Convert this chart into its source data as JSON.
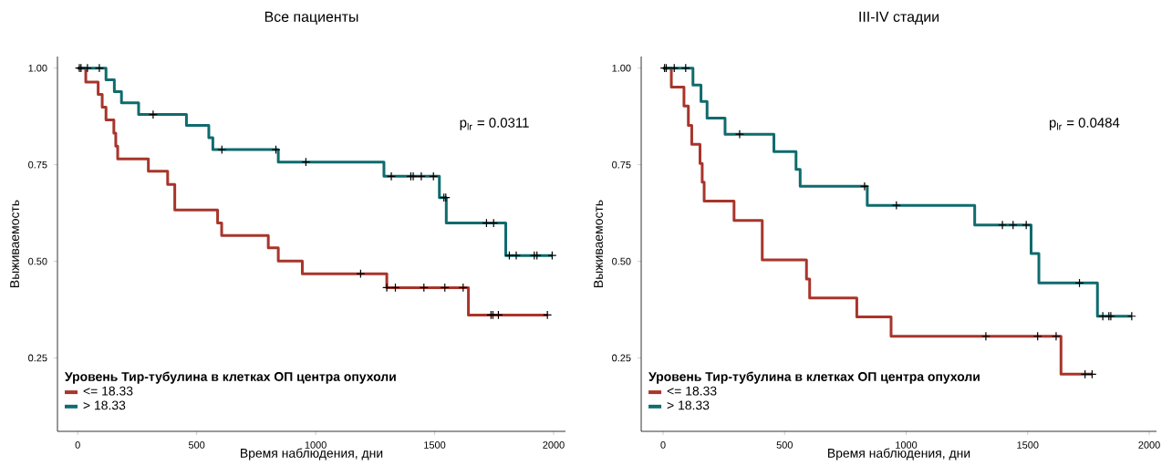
{
  "chart_data": [
    {
      "type": "step",
      "title": "Все пациенты",
      "xlabel": "Время наблюдения, дни",
      "ylabel": "Выживаемость",
      "legend_title": "Уровень Тир-тубулина в клетках ОП центра опухоли",
      "legend": "bottom left",
      "annotations": [
        "p$_{lr}$ = 0.0311"
      ],
      "xlim": [
        -85,
        2050
      ],
      "ylim": [
        0.06,
        1.03
      ],
      "xticks": [
        0,
        500,
        1000,
        1500,
        2000
      ],
      "yticks": [
        {
          "value": 0.25,
          "label": "0.25"
        },
        {
          "value": 0.5,
          "label": "0.50"
        },
        {
          "value": 0.75,
          "label": "0.75"
        },
        {
          "value": 1,
          "label": "1.00"
        }
      ],
      "series": [
        {
          "name": "<= 18.33",
          "color": "#a8352b",
          "x": [
            0,
            34,
            86,
            103,
            119,
            152,
            160,
            168,
            297,
            378,
            408,
            588,
            605,
            801,
            843,
            944,
            1299,
            1642,
            1974
          ],
          "values": [
            1,
            0.964,
            0.932,
            0.899,
            0.866,
            0.832,
            0.798,
            0.765,
            0.733,
            0.699,
            0.633,
            0.599,
            0.567,
            0.535,
            0.501,
            0.468,
            0.432,
            0.361,
            0.361
          ]
        },
        {
          "name": "> 18.33",
          "color": "#0f6b6e",
          "x": [
            0,
            119,
            154,
            184,
            256,
            457,
            551,
            568,
            843,
            1287,
            1520,
            1549,
            1799,
            1994
          ],
          "values": [
            1,
            0.97,
            0.939,
            0.91,
            0.88,
            0.852,
            0.82,
            0.789,
            0.757,
            0.72,
            0.665,
            0.599,
            0.515,
            0.515
          ]
        },
        {
          "color": "#000000",
          "type": "scatter",
          "marker": "cross",
          "x": [
            1189,
            1299,
            1335,
            1455,
            1543,
            1620,
            1737,
            1745,
            1768,
            1974
          ],
          "values": [
            0.468,
            0.432,
            0.432,
            0.432,
            0.432,
            0.432,
            0.361,
            0.361,
            0.361,
            0.361
          ]
        },
        {
          "color": "#000000",
          "type": "scatter",
          "marker": "cross",
          "x": [
            7,
            14,
            41,
            91,
            317,
            606,
            833,
            959,
            1318,
            1400,
            1410,
            1444,
            1495,
            1539,
            1547,
            1718,
            1748,
            1814,
            1843,
            1919,
            1930,
            1994
          ],
          "values": [
            1,
            1,
            1,
            1,
            0.88,
            0.789,
            0.789,
            0.757,
            0.72,
            0.72,
            0.72,
            0.72,
            0.72,
            0.665,
            0.665,
            0.599,
            0.599,
            0.515,
            0.515,
            0.515,
            0.515,
            0.515
          ]
        }
      ]
    },
    {
      "type": "step",
      "title": "III-IV стадии",
      "xlabel": "Время наблюдения, дни",
      "ylabel": "Выживаемость",
      "legend_title": "Уровень Тир-тубулина в клетках ОП центра опухоли",
      "legend": "bottom left",
      "annotations": [
        "p$_{lr}$ = 0.0484"
      ],
      "xlim": [
        -90,
        2030
      ],
      "ylim": [
        0.06,
        1.03
      ],
      "xticks": [
        0,
        500,
        1000,
        1500,
        2000
      ],
      "yticks": [
        {
          "value": 0.25,
          "label": "0.25"
        },
        {
          "value": 0.5,
          "label": "0.50"
        },
        {
          "value": 0.75,
          "label": "0.75"
        },
        {
          "value": 1,
          "label": "1.00"
        }
      ],
      "series": [
        {
          "name": "<= 18.33",
          "color": "#a8352b",
          "x": [
            0,
            34,
            86,
            104,
            118,
            152,
            161,
            169,
            292,
            408,
            590,
            603,
            797,
            938,
            1637,
            1765
          ],
          "values": [
            1,
            0.951,
            0.902,
            0.852,
            0.803,
            0.753,
            0.705,
            0.656,
            0.606,
            0.504,
            0.454,
            0.405,
            0.356,
            0.306,
            0.208,
            0.208
          ]
        },
        {
          "name": "> 18.33",
          "color": "#0f6b6e",
          "x": [
            0,
            123,
            156,
            181,
            255,
            456,
            547,
            564,
            840,
            1282,
            1514,
            1546,
            1787,
            1928
          ],
          "values": [
            1,
            0.956,
            0.914,
            0.871,
            0.829,
            0.784,
            0.738,
            0.694,
            0.645,
            0.594,
            0.52,
            0.444,
            0.358,
            0.358
          ]
        },
        {
          "color": "#000000",
          "type": "scatter",
          "marker": "cross",
          "x": [
            1328,
            1541,
            1617,
            1736,
            1765
          ],
          "values": [
            0.306,
            0.306,
            0.306,
            0.208,
            0.208
          ]
        },
        {
          "color": "#000000",
          "type": "scatter",
          "marker": "cross",
          "x": [
            6,
            13,
            46,
            93,
            315,
            829,
            960,
            1396,
            1440,
            1494,
            1713,
            1809,
            1834,
            1842,
            1928
          ],
          "values": [
            1,
            1,
            1,
            1,
            0.829,
            0.694,
            0.645,
            0.594,
            0.594,
            0.594,
            0.444,
            0.358,
            0.358,
            0.358,
            0.358
          ]
        }
      ]
    }
  ]
}
